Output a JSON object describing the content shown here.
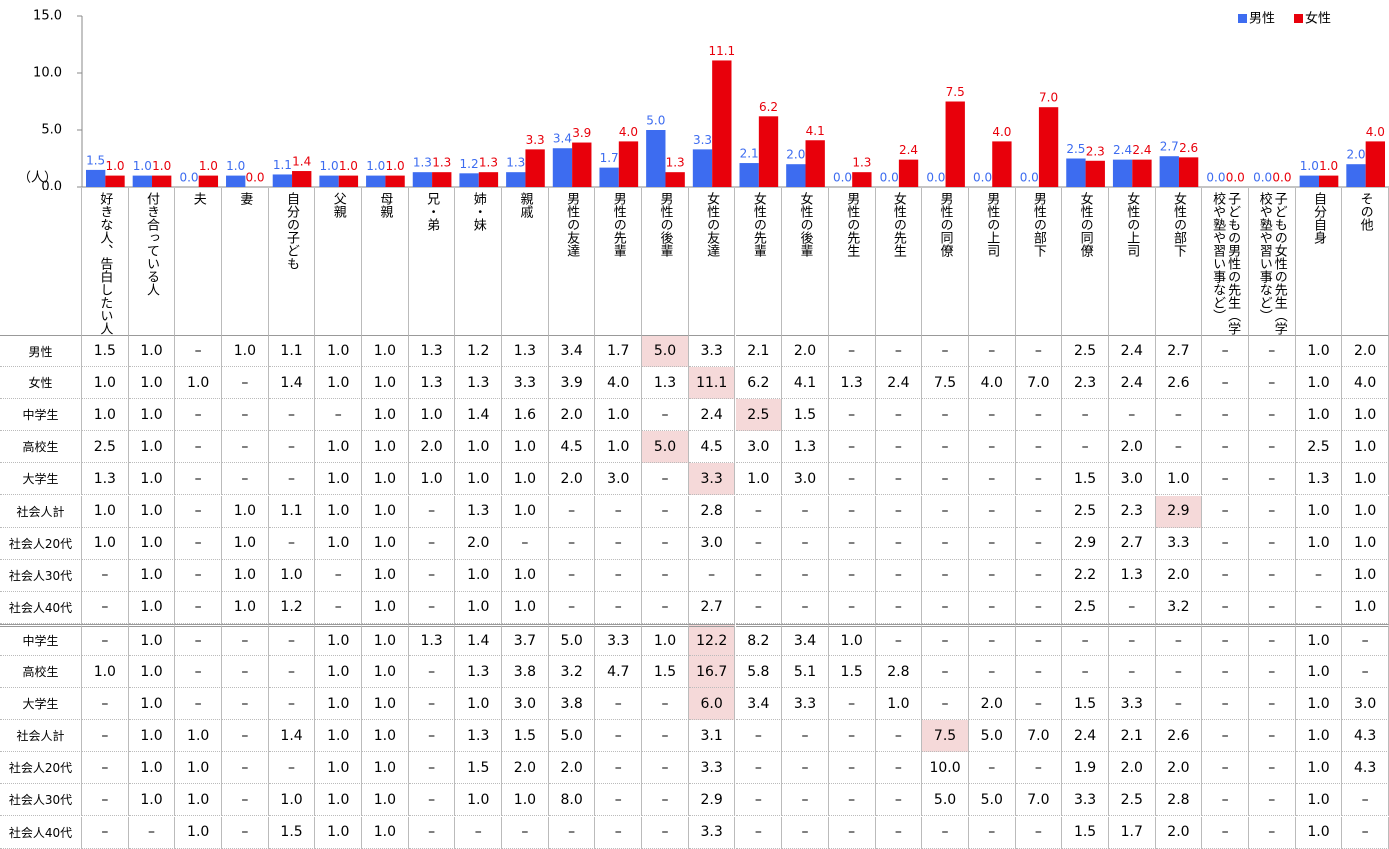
{
  "chart_data": {
    "type": "bar",
    "y_label": "（人）",
    "legend": "top-right",
    "categories": [
      "好きな人、告白したい人",
      "付き合っている人",
      "夫",
      "妻",
      "自分の子ども",
      "父親",
      "母親",
      "兄・弟",
      "姉・妹",
      "親戚",
      "男性の友達",
      "男性の先輩",
      "男性の後輩",
      "女性の友達",
      "女性の先輩",
      "女性の後輩",
      "男性の先生",
      "女性の先生",
      "男性の同僚",
      "男性の上司",
      "男性の部下",
      "女性の同僚",
      "女性の上司",
      "女性の部下",
      "子どもの男性の先生（学校や塾や習い事など）",
      "子どもの女性の先生（学校や塾や習い事など）",
      "自分自身",
      "その他"
    ],
    "series": [
      {
        "name": "男性",
        "color": "#3d6cf0",
        "values": [
          1.5,
          1.0,
          0.0,
          1.0,
          1.1,
          1.0,
          1.0,
          1.3,
          1.2,
          1.3,
          3.4,
          1.7,
          5.0,
          3.3,
          2.1,
          2.0,
          0.0,
          0.0,
          0.0,
          0.0,
          0.0,
          2.5,
          2.4,
          2.7,
          0.0,
          0.0,
          1.0,
          2.0
        ],
        "value_labels": [
          "1.5",
          "1.0",
          "0.0",
          "1.0",
          "1.1",
          "1.0",
          "1.0",
          "1.3",
          "1.2",
          "1.3",
          "3.4",
          "1.7",
          "5.0",
          "3.3",
          "2.1",
          "2.0",
          "0.0",
          "0.0",
          "0.0",
          "0.0",
          "0.0",
          "2.5",
          "2.4",
          "2.7",
          "0.0",
          "0.0",
          "1.0",
          "2.0"
        ]
      },
      {
        "name": "女性",
        "color": "#e8000b",
        "values": [
          1.0,
          1.0,
          1.0,
          0.0,
          1.4,
          1.0,
          1.0,
          1.3,
          1.3,
          3.3,
          3.9,
          4.0,
          1.3,
          11.1,
          6.2,
          4.1,
          1.3,
          2.4,
          7.5,
          4.0,
          7.0,
          2.3,
          2.4,
          2.6,
          0.0,
          0.0,
          1.0,
          4.0
        ],
        "value_labels": [
          "1.0",
          "1.0",
          "1.0",
          "0.0",
          "1.4",
          "1.0",
          "1.0",
          "1.3",
          "1.3",
          "3.3",
          "3.9",
          "4.0",
          "1.3",
          "11.1",
          "6.2",
          "4.1",
          "1.3",
          "2.4",
          "7.5",
          "4.0",
          "7.0",
          "2.3",
          "2.4",
          "2.6",
          "0.0",
          "0.0",
          "1.0",
          "4.0"
        ]
      }
    ],
    "ylim": [
      0,
      15
    ],
    "yticks": [
      {
        "value": 0,
        "label": "0.0"
      },
      {
        "value": 5,
        "label": "5.0"
      },
      {
        "value": 10,
        "label": "10.0"
      },
      {
        "value": 15,
        "label": "15.0"
      }
    ]
  },
  "table": {
    "rows": [
      {
        "label": "男性",
        "highlight": 12,
        "cells": [
          "1.5",
          "1.0",
          "–",
          "1.0",
          "1.1",
          "1.0",
          "1.0",
          "1.3",
          "1.2",
          "1.3",
          "3.4",
          "1.7",
          "5.0",
          "3.3",
          "2.1",
          "2.0",
          "–",
          "–",
          "–",
          "–",
          "–",
          "2.5",
          "2.4",
          "2.7",
          "–",
          "–",
          "1.0",
          "2.0"
        ]
      },
      {
        "label": "女性",
        "highlight": 13,
        "cells": [
          "1.0",
          "1.0",
          "1.0",
          "–",
          "1.4",
          "1.0",
          "1.0",
          "1.3",
          "1.3",
          "3.3",
          "3.9",
          "4.0",
          "1.3",
          "11.1",
          "6.2",
          "4.1",
          "1.3",
          "2.4",
          "7.5",
          "4.0",
          "7.0",
          "2.3",
          "2.4",
          "2.6",
          "–",
          "–",
          "1.0",
          "4.0"
        ]
      },
      {
        "label": "中学生",
        "highlight": 14,
        "cells": [
          "1.0",
          "1.0",
          "–",
          "–",
          "–",
          "–",
          "1.0",
          "1.0",
          "1.4",
          "1.6",
          "2.0",
          "1.0",
          "–",
          "2.4",
          "2.5",
          "1.5",
          "–",
          "–",
          "–",
          "–",
          "–",
          "–",
          "–",
          "–",
          "–",
          "–",
          "1.0",
          "1.0"
        ]
      },
      {
        "label": "高校生",
        "highlight": 12,
        "cells": [
          "2.5",
          "1.0",
          "–",
          "–",
          "–",
          "1.0",
          "1.0",
          "2.0",
          "1.0",
          "1.0",
          "4.5",
          "1.0",
          "5.0",
          "4.5",
          "3.0",
          "1.3",
          "–",
          "–",
          "–",
          "–",
          "–",
          "–",
          "2.0",
          "–",
          "–",
          "–",
          "2.5",
          "1.0"
        ]
      },
      {
        "label": "大学生",
        "highlight": 13,
        "cells": [
          "1.3",
          "1.0",
          "–",
          "–",
          "–",
          "1.0",
          "1.0",
          "1.0",
          "1.0",
          "1.0",
          "2.0",
          "3.0",
          "–",
          "3.3",
          "1.0",
          "3.0",
          "–",
          "–",
          "–",
          "–",
          "–",
          "1.5",
          "3.0",
          "1.0",
          "–",
          "–",
          "1.3",
          "1.0"
        ]
      },
      {
        "label": "社会人計",
        "highlight": 23,
        "cells": [
          "1.0",
          "1.0",
          "–",
          "1.0",
          "1.1",
          "1.0",
          "1.0",
          "–",
          "1.3",
          "1.0",
          "–",
          "–",
          "–",
          "2.8",
          "–",
          "–",
          "–",
          "–",
          "–",
          "–",
          "–",
          "2.5",
          "2.3",
          "2.9",
          "–",
          "–",
          "1.0",
          "1.0"
        ]
      },
      {
        "label": "社会人20代",
        "cells": [
          "1.0",
          "1.0",
          "–",
          "1.0",
          "–",
          "1.0",
          "1.0",
          "–",
          "2.0",
          "–",
          "–",
          "–",
          "–",
          "3.0",
          "–",
          "–",
          "–",
          "–",
          "–",
          "–",
          "–",
          "2.9",
          "2.7",
          "3.3",
          "–",
          "–",
          "1.0",
          "1.0"
        ]
      },
      {
        "label": "社会人30代",
        "cells": [
          "–",
          "1.0",
          "–",
          "1.0",
          "1.0",
          "–",
          "1.0",
          "–",
          "1.0",
          "1.0",
          "–",
          "–",
          "–",
          "–",
          "–",
          "–",
          "–",
          "–",
          "–",
          "–",
          "–",
          "2.2",
          "1.3",
          "2.0",
          "–",
          "–",
          "–",
          "1.0"
        ]
      },
      {
        "label": "社会人40代",
        "cells": [
          "–",
          "1.0",
          "–",
          "1.0",
          "1.2",
          "–",
          "1.0",
          "–",
          "1.0",
          "1.0",
          "–",
          "–",
          "–",
          "2.7",
          "–",
          "–",
          "–",
          "–",
          "–",
          "–",
          "–",
          "2.5",
          "–",
          "3.2",
          "–",
          "–",
          "–",
          "1.0"
        ]
      },
      {
        "label": "中学生",
        "highlight": 13,
        "cells": [
          "–",
          "1.0",
          "–",
          "–",
          "–",
          "1.0",
          "1.0",
          "1.3",
          "1.4",
          "3.7",
          "5.0",
          "3.3",
          "1.0",
          "12.2",
          "8.2",
          "3.4",
          "1.0",
          "–",
          "–",
          "–",
          "–",
          "–",
          "–",
          "–",
          "–",
          "–",
          "1.0",
          "–"
        ]
      },
      {
        "label": "高校生",
        "highlight": 13,
        "cells": [
          "1.0",
          "1.0",
          "–",
          "–",
          "–",
          "1.0",
          "1.0",
          "–",
          "1.3",
          "3.8",
          "3.2",
          "4.7",
          "1.5",
          "16.7",
          "5.8",
          "5.1",
          "1.5",
          "2.8",
          "–",
          "–",
          "–",
          "–",
          "–",
          "–",
          "–",
          "–",
          "1.0",
          "–"
        ]
      },
      {
        "label": "大学生",
        "highlight": 13,
        "cells": [
          "–",
          "1.0",
          "–",
          "–",
          "–",
          "1.0",
          "1.0",
          "–",
          "1.0",
          "3.0",
          "3.8",
          "–",
          "–",
          "6.0",
          "3.4",
          "3.3",
          "–",
          "1.0",
          "–",
          "2.0",
          "–",
          "1.5",
          "3.3",
          "–",
          "–",
          "–",
          "1.0",
          "3.0"
        ]
      },
      {
        "label": "社会人計",
        "highlight": 18,
        "cells": [
          "–",
          "1.0",
          "1.0",
          "–",
          "1.4",
          "1.0",
          "1.0",
          "–",
          "1.3",
          "1.5",
          "5.0",
          "–",
          "–",
          "3.1",
          "–",
          "–",
          "–",
          "–",
          "7.5",
          "5.0",
          "7.0",
          "2.4",
          "2.1",
          "2.6",
          "–",
          "–",
          "1.0",
          "4.3"
        ]
      },
      {
        "label": "社会人20代",
        "cells": [
          "–",
          "1.0",
          "1.0",
          "–",
          "–",
          "1.0",
          "1.0",
          "–",
          "1.5",
          "2.0",
          "2.0",
          "–",
          "–",
          "3.3",
          "–",
          "–",
          "–",
          "–",
          "10.0",
          "–",
          "–",
          "1.9",
          "2.0",
          "2.0",
          "–",
          "–",
          "1.0",
          "4.3"
        ]
      },
      {
        "label": "社会人30代",
        "cells": [
          "–",
          "1.0",
          "1.0",
          "–",
          "1.0",
          "1.0",
          "1.0",
          "–",
          "1.0",
          "1.0",
          "8.0",
          "–",
          "–",
          "2.9",
          "–",
          "–",
          "–",
          "–",
          "5.0",
          "5.0",
          "7.0",
          "3.3",
          "2.5",
          "2.8",
          "–",
          "–",
          "1.0",
          "–"
        ]
      },
      {
        "label": "社会人40代",
        "cells": [
          "–",
          "–",
          "1.0",
          "–",
          "1.5",
          "1.0",
          "1.0",
          "–",
          "–",
          "–",
          "–",
          "–",
          "–",
          "3.3",
          "–",
          "–",
          "–",
          "–",
          "–",
          "–",
          "–",
          "1.5",
          "1.7",
          "2.0",
          "–",
          "–",
          "1.0",
          "–"
        ]
      }
    ]
  }
}
